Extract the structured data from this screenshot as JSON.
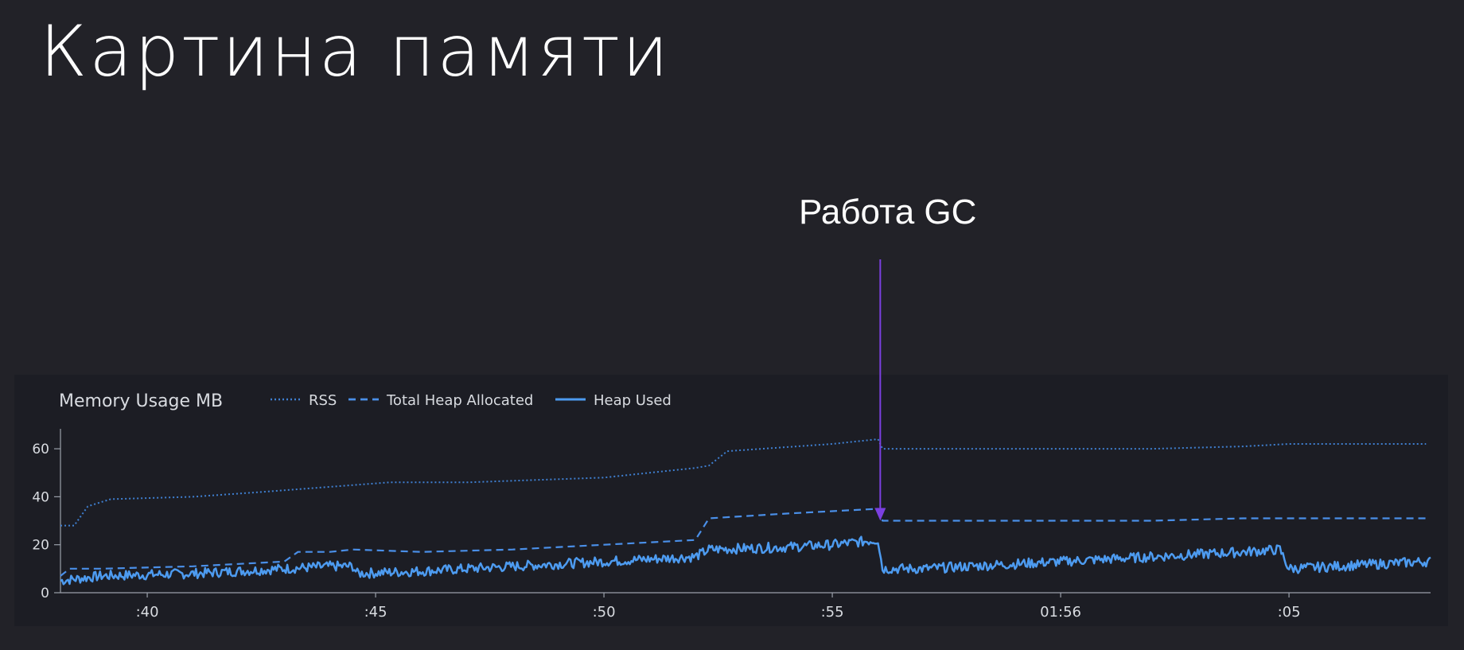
{
  "slide": {
    "title": "Картина памяти",
    "annotation_label": "Работа GC",
    "annotation_color": "#7b3fe0"
  },
  "chart_data": {
    "type": "line",
    "title": "Memory Usage MB",
    "xlabel": "",
    "ylabel": "",
    "x_ticks": [
      ":40",
      ":45",
      ":50",
      ":55",
      "01:56",
      ":05"
    ],
    "x_tick_values": [
      1.0,
      6.0,
      11.0,
      16.0,
      21.0,
      26.0
    ],
    "xlim": [
      -0.9,
      29.1
    ],
    "ylim": [
      0,
      65
    ],
    "y_ticks": [
      0,
      20,
      40,
      60
    ],
    "grid": false,
    "legend_position": "top",
    "colors": {
      "rss": "#3f7fd0",
      "total": "#4a8fe8",
      "used": "#4d9bf0",
      "axis": "#9aa0aa",
      "text": "#d8dbe0"
    },
    "series": [
      {
        "name": "RSS",
        "style": "dotted",
        "x": [
          -0.9,
          -0.6,
          -0.3,
          0.2,
          2.0,
          3.5,
          6.3,
          6.5,
          8.0,
          9.5,
          11.0,
          12.0,
          13.0,
          13.3,
          13.7,
          16.0,
          17.0,
          17.1,
          20.0,
          23.0,
          25.0,
          26.0,
          29.0
        ],
        "values": [
          28,
          28,
          36,
          39,
          40,
          42,
          46,
          46,
          46,
          47,
          48,
          50,
          52,
          53,
          59,
          62,
          64,
          60,
          60,
          60,
          61,
          62,
          62
        ]
      },
      {
        "name": "Total Heap Allocated",
        "style": "dashed",
        "x": [
          -0.9,
          -0.7,
          0.0,
          2.0,
          4.0,
          4.3,
          5.0,
          5.5,
          7.0,
          9.0,
          11.0,
          12.0,
          13.0,
          13.3,
          15.0,
          16.0,
          17.0,
          17.1,
          20.0,
          23.0,
          25.0,
          26.0,
          29.0
        ],
        "values": [
          7,
          10,
          10,
          11,
          13,
          17,
          17,
          18,
          17,
          18,
          20,
          21,
          22,
          31,
          33,
          34,
          35,
          30,
          30,
          30,
          31,
          31,
          31
        ]
      },
      {
        "name": "Heap Used",
        "style": "solid",
        "x": [
          -0.9,
          0.0,
          2.0,
          4.0,
          5.0,
          5.5,
          5.6,
          7.0,
          9.0,
          11.0,
          12.0,
          13.0,
          13.3,
          15.0,
          16.0,
          17.0,
          17.1,
          18.0,
          20.0,
          22.0,
          24.0,
          25.0,
          25.8,
          26.0,
          27.0,
          28.0,
          29.0
        ],
        "values": [
          5,
          7,
          8,
          10,
          11,
          11,
          8,
          9,
          11,
          13,
          14,
          15,
          18,
          19,
          20,
          22,
          10,
          10,
          12,
          14,
          16,
          17,
          18,
          10,
          11,
          12,
          13
        ]
      }
    ],
    "annotation": {
      "x": 17.05,
      "y": 30
    }
  }
}
